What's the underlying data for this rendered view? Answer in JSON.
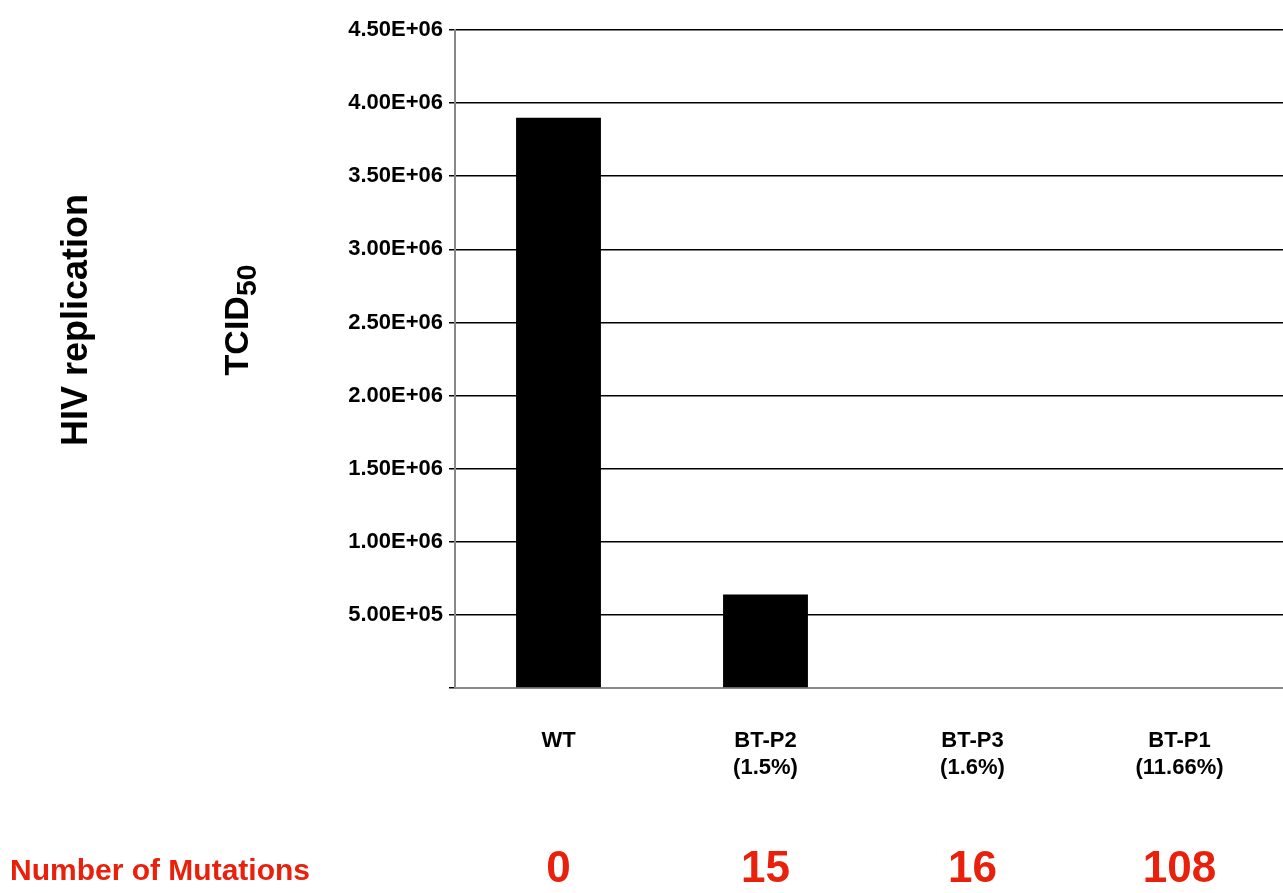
{
  "chart_data": {
    "type": "bar",
    "title": "HIV replication",
    "ylabel": "TCID$_{50}$",
    "categories": [
      "WT",
      "BT-P2 (1.5%)",
      "BT-P3 (1.6%)",
      "BT-P1 (11.66%)"
    ],
    "values": [
      3900000,
      640000,
      0,
      0
    ],
    "color": "#000000",
    "ylim": [
      0,
      4500000
    ],
    "yticks": [
      {
        "value": 0,
        "label": null
      },
      {
        "value": 500000,
        "label": "5.00E+05"
      },
      {
        "value": 1000000,
        "label": "1.00E+06"
      },
      {
        "value": 1500000,
        "label": "1.50E+06"
      },
      {
        "value": 2000000,
        "label": "2.00E+06"
      },
      {
        "value": 2500000,
        "label": "2.50E+06"
      },
      {
        "value": 3000000,
        "label": "3.00E+06"
      },
      {
        "value": 3500000,
        "label": "3.50E+06"
      },
      {
        "value": 4000000,
        "label": "4.00E+06"
      },
      {
        "value": 4500000,
        "label": "4.50E+06"
      }
    ],
    "grid": "y",
    "legend": false,
    "annotations": [
      "Number of Mutations",
      "0",
      "15",
      "16",
      "108"
    ]
  }
}
